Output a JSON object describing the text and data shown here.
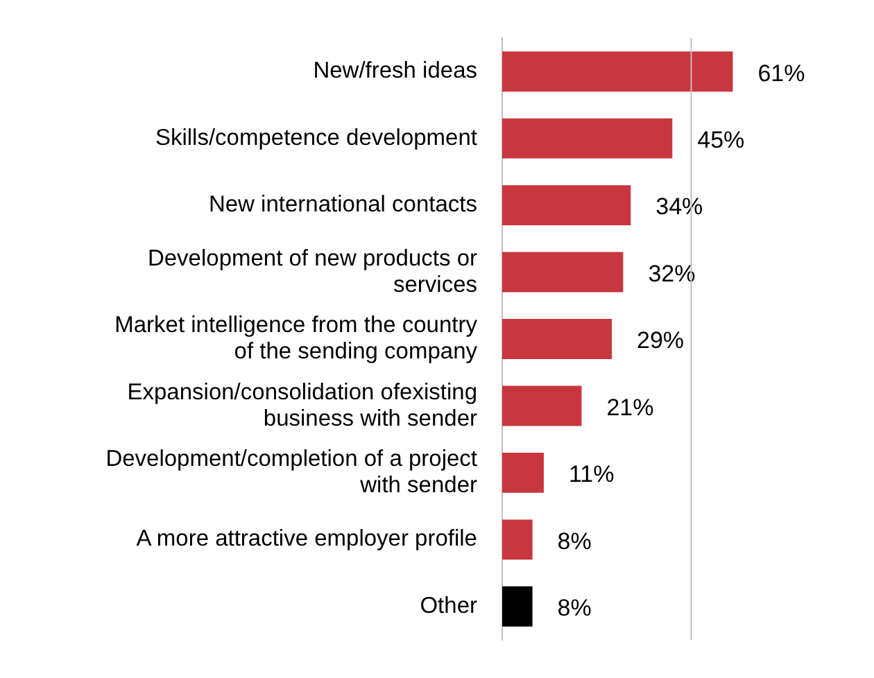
{
  "chart_data": {
    "type": "bar",
    "orientation": "horizontal",
    "categories": [
      "New/fresh ideas",
      "Skills/competence development",
      "New international contacts",
      "Development of new products or services",
      "Market intelligence from the country of the sending company",
      "Expansion/consolidation ofexisting business with sender",
      "Development/completion of a project with sender",
      "A more attractive employer profile",
      "Other"
    ],
    "values": [
      61,
      45,
      34,
      32,
      29,
      21,
      11,
      8,
      8
    ],
    "colors": [
      "#c8363f",
      "#c8363f",
      "#c8363f",
      "#c8363f",
      "#c8363f",
      "#c8363f",
      "#c8363f",
      "#c8363f",
      "#000000"
    ],
    "value_labels": [
      "61%",
      "45%",
      "34%",
      "32%",
      "29%",
      "21%",
      "11%",
      "8%",
      "8%"
    ],
    "ref_lines": [
      {
        "axis": "x",
        "value": 50,
        "color": "#bfbfbf"
      }
    ],
    "tick_labels": "y",
    "legend": false
  }
}
